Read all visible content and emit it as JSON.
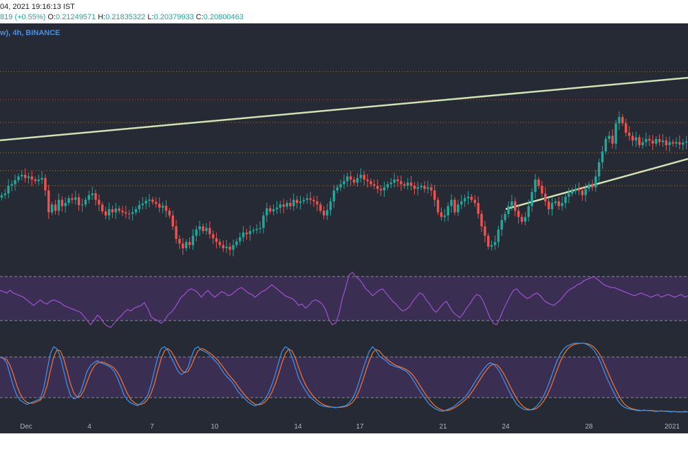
{
  "header": {
    "date_time": "04, 2021 19:16:13 IST",
    "change": "819 (+0.55%)",
    "open_label": "O:",
    "open": "0.21249571",
    "high_label": "H:",
    "high": "0.21835322",
    "low_label": "L:",
    "low": "0.20379933",
    "close_label": "C:",
    "close": "0.20800463"
  },
  "symbol": "w), 4h, BINANCE",
  "chart_data": [
    {
      "type": "candlestick",
      "interval": "4h",
      "exchange": "BINANCE",
      "x_ticks": [
        "Dec",
        "4",
        "7",
        "10",
        "14",
        "17",
        "21",
        "24",
        "28",
        "2021"
      ],
      "close_series": [
        0.201,
        0.2015,
        0.204,
        0.2045,
        0.2058,
        0.207,
        0.2075,
        0.2065,
        0.207,
        0.206,
        0.2055,
        0.206,
        0.2065,
        0.2025,
        0.1955,
        0.198,
        0.196,
        0.1995,
        0.1975,
        0.1985,
        0.2,
        0.1995,
        0.2003,
        0.1978,
        0.198,
        0.1995,
        0.201,
        0.2016,
        0.1995,
        0.198,
        0.1958,
        0.1945,
        0.1965,
        0.1955,
        0.1967,
        0.196,
        0.1955,
        0.1951,
        0.195,
        0.1955,
        0.1965,
        0.1978,
        0.1983,
        0.1992,
        0.1996,
        0.1988,
        0.1982,
        0.197,
        0.1976,
        0.196,
        0.1945,
        0.191,
        0.187,
        0.1855,
        0.184,
        0.186,
        0.185,
        0.188,
        0.19,
        0.191,
        0.1895,
        0.1905,
        0.1885,
        0.1872,
        0.186,
        0.185,
        0.184,
        0.1845,
        0.1835,
        0.185,
        0.1862,
        0.1875,
        0.189,
        0.1885,
        0.1895,
        0.1898,
        0.1902,
        0.1905,
        0.1945,
        0.1968,
        0.1958,
        0.1965,
        0.197,
        0.198,
        0.1973,
        0.1985,
        0.1975,
        0.1995,
        0.1985,
        0.199,
        0.1995,
        0.2,
        0.1995,
        0.199,
        0.198,
        0.196,
        0.1945,
        0.1962,
        0.199,
        0.2025,
        0.2035,
        0.2045,
        0.2055,
        0.207,
        0.206,
        0.205,
        0.2065,
        0.2075,
        0.206,
        0.2055,
        0.2045,
        0.204,
        0.203,
        0.2025,
        0.2035,
        0.2045,
        0.205,
        0.206,
        0.2055,
        0.2045,
        0.204,
        0.205,
        0.204,
        0.203,
        0.2035,
        0.204,
        0.203,
        0.2035,
        0.2025,
        0.1995,
        0.1955,
        0.194,
        0.1945,
        0.1975,
        0.1995,
        0.1955,
        0.198,
        0.199,
        0.2,
        0.2005,
        0.1995,
        0.1985,
        0.195,
        0.191,
        0.188,
        0.1845,
        0.185,
        0.186,
        0.19,
        0.193,
        0.195,
        0.1975,
        0.199,
        0.196,
        0.194,
        0.1925,
        0.194,
        0.1975,
        0.202,
        0.206,
        0.204,
        0.2015,
        0.199,
        0.1965,
        0.1985,
        0.199,
        0.1975,
        0.1985,
        0.2005,
        0.2015,
        0.2025,
        0.203,
        0.2025,
        0.201,
        0.203,
        0.2045,
        0.2035,
        0.207,
        0.2115,
        0.215,
        0.219,
        0.22,
        0.2175,
        0.224,
        0.226,
        0.224,
        0.221,
        0.22,
        0.2185,
        0.2195,
        0.217,
        0.218,
        0.219,
        0.2185,
        0.2175,
        0.219,
        0.218,
        0.2185,
        0.217,
        0.218,
        0.2175,
        0.218,
        0.2172,
        0.2178,
        0.2182
      ],
      "rsi_series": [
        60,
        59,
        58,
        60,
        58,
        57,
        56,
        55,
        53,
        51,
        49,
        51,
        53,
        51,
        50,
        52,
        53,
        52,
        51,
        49,
        48,
        47,
        46,
        45,
        44,
        41,
        38,
        35,
        38,
        42,
        40,
        36,
        34,
        33,
        36,
        39,
        41,
        44,
        46,
        45,
        47,
        48,
        49,
        51,
        47,
        41,
        39,
        38,
        36,
        38,
        42,
        44,
        47,
        51,
        55,
        57,
        60,
        61,
        60,
        58,
        55,
        58,
        60,
        57,
        55,
        57,
        59,
        58,
        56,
        57,
        59,
        61,
        62,
        60,
        58,
        57,
        55,
        57,
        59,
        60,
        62,
        64,
        62,
        60,
        58,
        56,
        55,
        54,
        52,
        49,
        50,
        47,
        49,
        52,
        53,
        52,
        50,
        46,
        39,
        35,
        36,
        43,
        54,
        62,
        71,
        73,
        70,
        68,
        65,
        61,
        59,
        56,
        58,
        60,
        61,
        58,
        55,
        52,
        50,
        47,
        45,
        46,
        48,
        52,
        55,
        58,
        57,
        53,
        50,
        46,
        44,
        47,
        50,
        52,
        48,
        44,
        42,
        40,
        43,
        47,
        50,
        54,
        57,
        56,
        52,
        46,
        40,
        36,
        35,
        40,
        46,
        51,
        56,
        60,
        61,
        58,
        56,
        54,
        55,
        57,
        58,
        56,
        53,
        51,
        50,
        49,
        51,
        53,
        56,
        59,
        61,
        62,
        64,
        65,
        67,
        68,
        69,
        70,
        68,
        66,
        64,
        63,
        62,
        62,
        61,
        60,
        59,
        58,
        57,
        56,
        57,
        58,
        57,
        56,
        55,
        56,
        57,
        55,
        56,
        57,
        56,
        55,
        56,
        57,
        55,
        56
      ],
      "stoch_k": [
        80,
        78,
        72,
        55,
        38,
        25,
        18,
        15,
        12,
        14,
        16,
        18,
        20,
        35,
        60,
        85,
        95,
        92,
        80,
        60,
        40,
        25,
        20,
        22,
        30,
        45,
        60,
        68,
        72,
        75,
        72,
        70,
        68,
        65,
        60,
        50,
        38,
        25,
        18,
        14,
        12,
        10,
        14,
        18,
        25,
        40,
        60,
        80,
        92,
        95,
        90,
        80,
        70,
        60,
        55,
        58,
        65,
        80,
        92,
        95,
        90,
        88,
        85,
        80,
        75,
        70,
        62,
        55,
        50,
        45,
        38,
        30,
        25,
        20,
        15,
        12,
        10,
        12,
        15,
        20,
        28,
        40,
        55,
        72,
        88,
        95,
        92,
        80,
        65,
        50,
        40,
        32,
        25,
        20,
        16,
        12,
        10,
        9,
        8,
        8,
        7,
        8,
        9,
        10,
        14,
        20,
        30,
        45,
        60,
        75,
        88,
        95,
        90,
        82,
        78,
        75,
        70,
        68,
        66,
        65,
        62,
        60,
        55,
        48,
        40,
        32,
        25,
        18,
        12,
        8,
        5,
        3,
        2,
        4,
        6,
        8,
        12,
        16,
        20,
        25,
        32,
        40,
        48,
        55,
        62,
        68,
        72,
        70,
        65,
        58,
        48,
        38,
        28,
        20,
        12,
        8,
        5,
        4,
        4,
        6,
        10,
        16,
        24,
        35,
        48,
        62,
        75,
        85,
        92,
        96,
        98,
        100,
        100,
        100,
        100,
        98,
        95,
        90,
        82,
        72,
        60,
        48,
        38,
        28,
        18,
        12,
        8,
        6,
        5,
        4,
        3,
        3,
        4,
        3,
        3,
        2,
        2,
        3,
        2,
        2,
        1,
        2,
        1,
        1,
        2,
        1
      ]
    }
  ]
}
